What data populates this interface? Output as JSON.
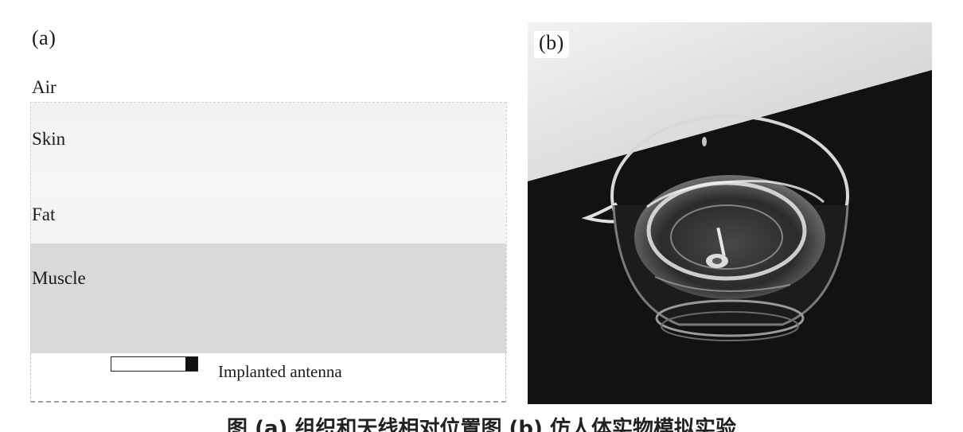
{
  "panel_a": {
    "label": "(a)",
    "layers": {
      "air": "Air",
      "skin": "Skin",
      "fat": "Fat",
      "muscle": "Muscle"
    },
    "antenna_label": "Implanted antenna"
  },
  "panel_b": {
    "label": "(b)"
  },
  "colors": {
    "skin_fat_layer": "#f3f3f3",
    "muscle_layer": "#d9d9d9",
    "photo_background": "#121212"
  },
  "caption": "图 (a) 组织和天线相对位置图 (b) 仿人体实物模拟实验"
}
